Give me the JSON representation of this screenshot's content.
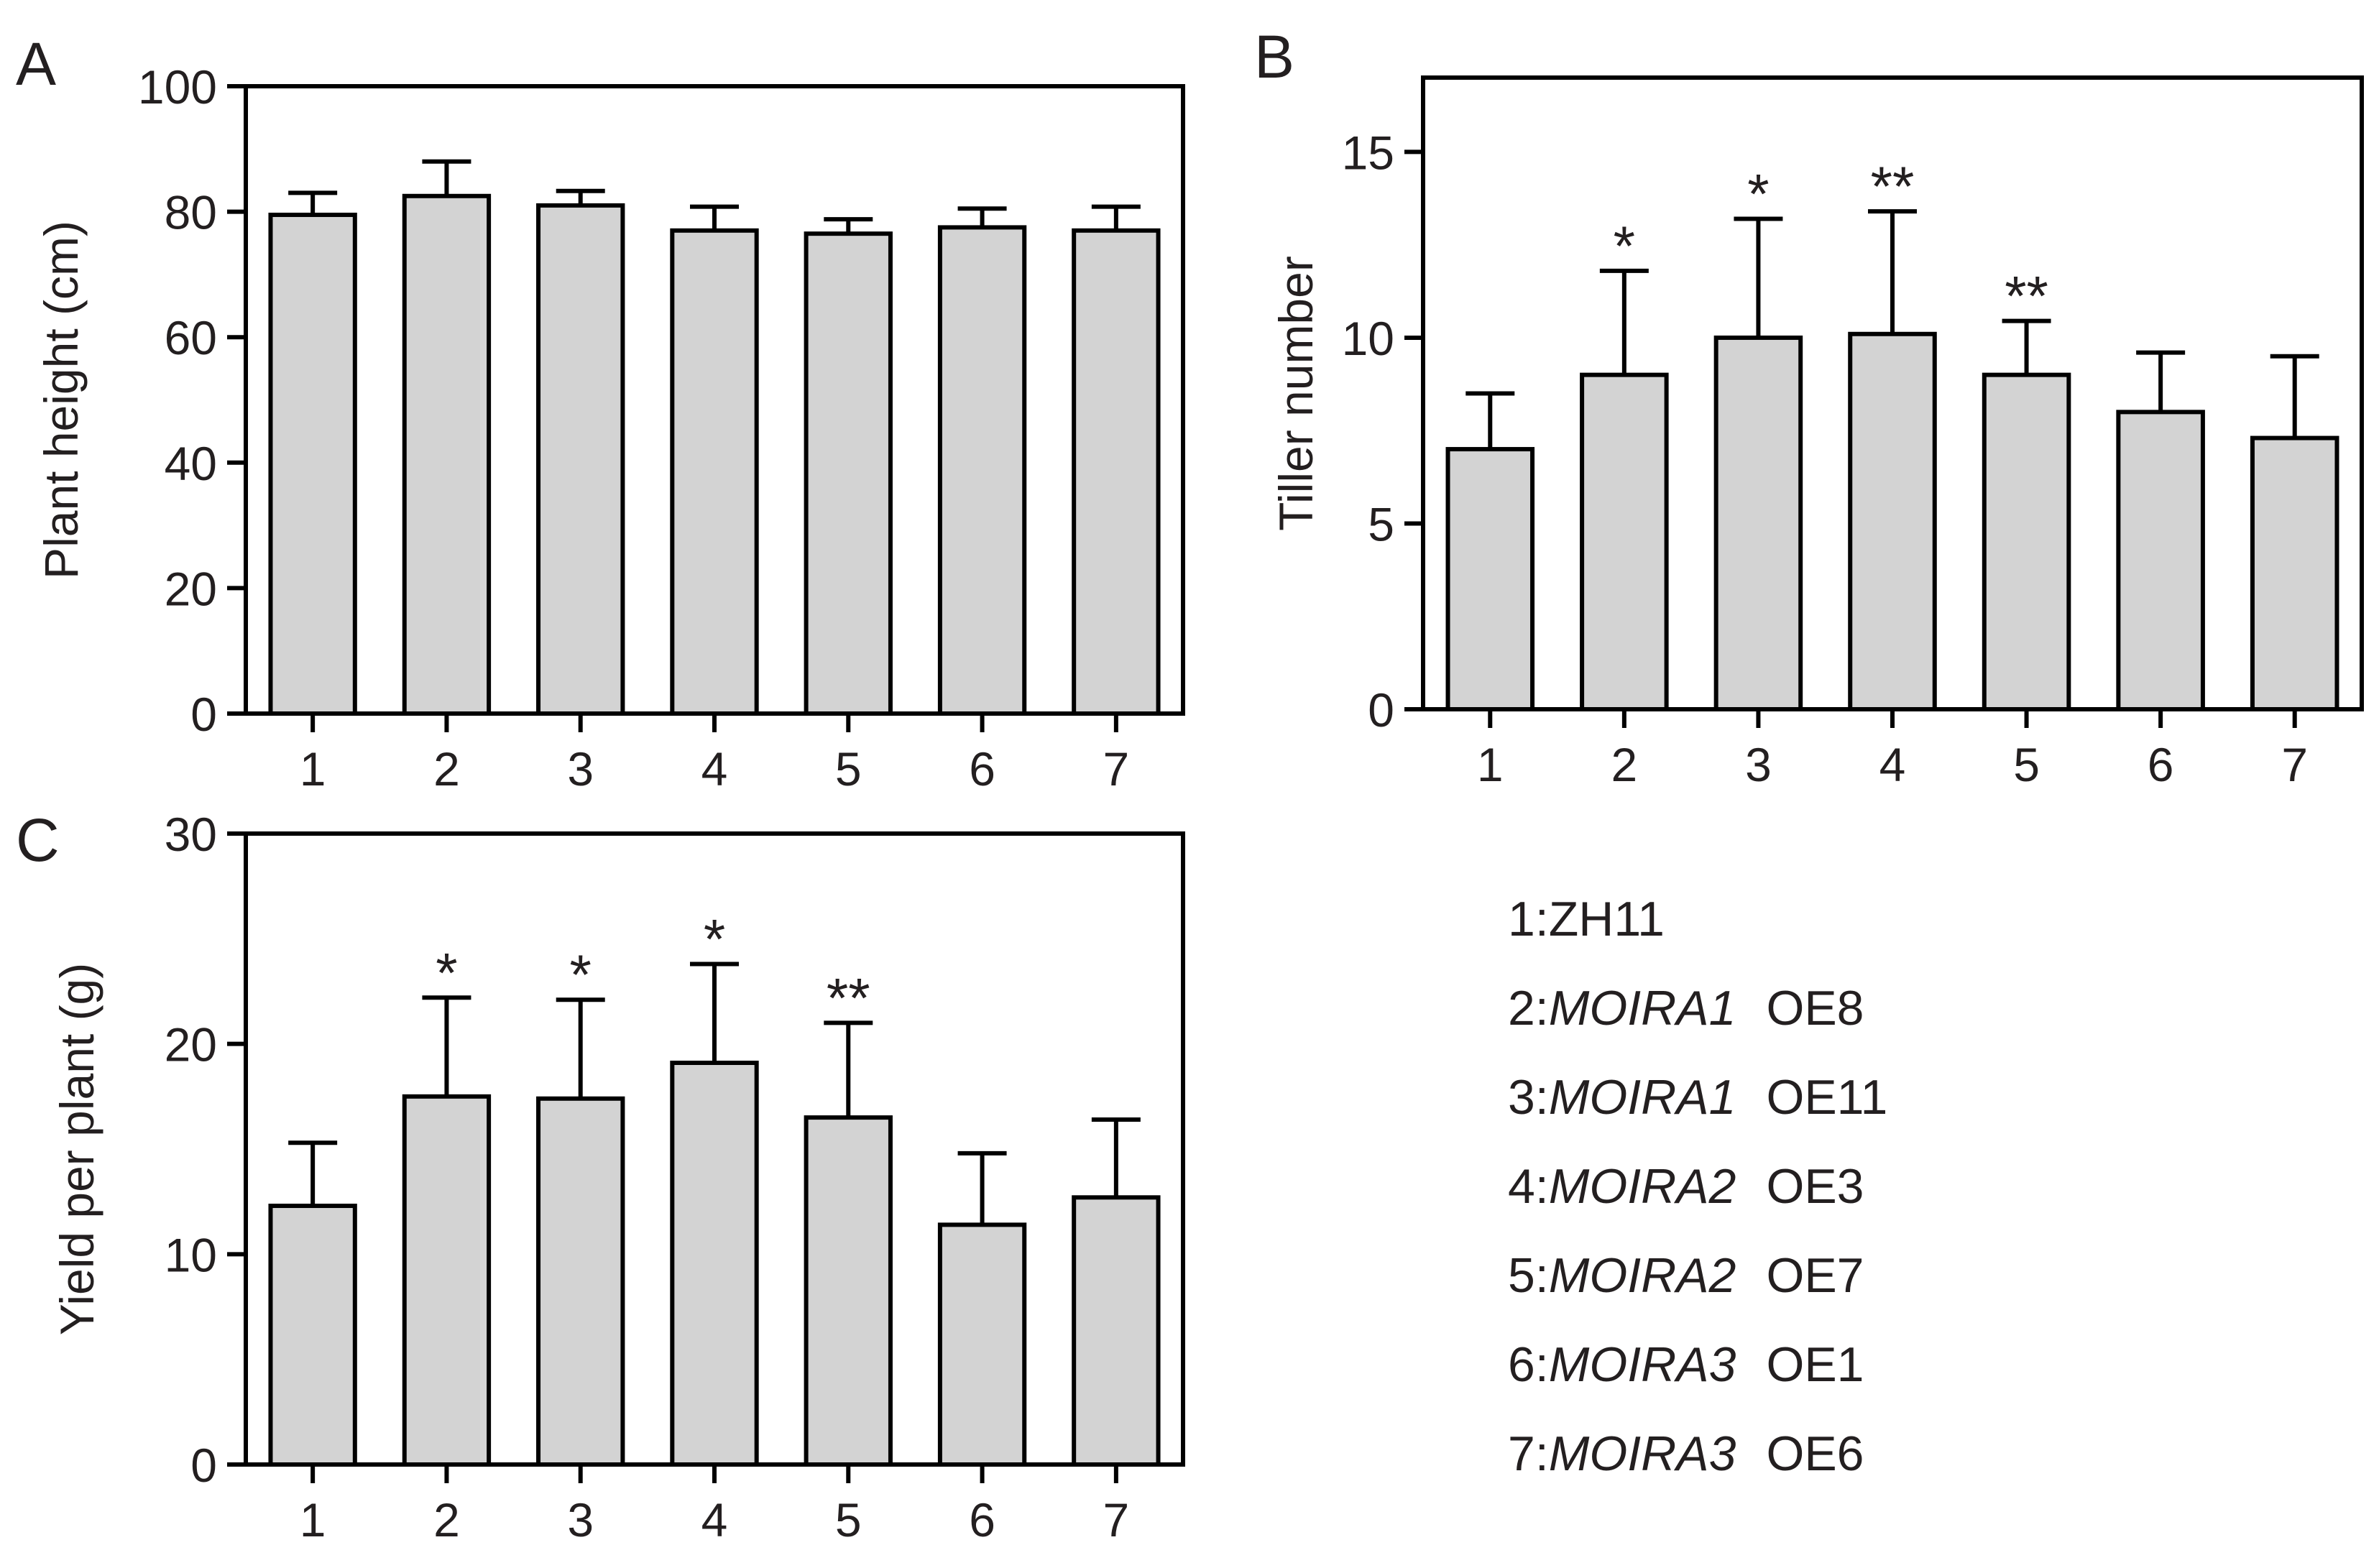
{
  "legend": {
    "items": [
      {
        "index": "1:",
        "gene": "",
        "line": "ZH11"
      },
      {
        "index": "2:",
        "gene": "MOIRA1",
        "line": "OE8"
      },
      {
        "index": "3:",
        "gene": "MOIRA1",
        "line": "OE11"
      },
      {
        "index": "4:",
        "gene": "MOIRA2",
        "line": "OE3"
      },
      {
        "index": "5:",
        "gene": "MOIRA2",
        "line": "OE7"
      },
      {
        "index": "6:",
        "gene": "MOIRA3",
        "line": "OE1"
      },
      {
        "index": "7:",
        "gene": "MOIRA3",
        "line": "OE6"
      }
    ]
  },
  "style": {
    "bar_fill": "#d3d3d3",
    "stroke": "#000000",
    "text": "#231f20"
  },
  "chart_data": [
    {
      "panel": "A",
      "type": "bar",
      "categories": [
        "1",
        "2",
        "3",
        "4",
        "5",
        "6",
        "7"
      ],
      "values": [
        79.5,
        82.5,
        81.0,
        77.0,
        76.5,
        77.5,
        77.0
      ],
      "errors": [
        3.5,
        5.5,
        2.3,
        3.8,
        2.3,
        3.0,
        3.8
      ],
      "significance": [
        "",
        "",
        "",
        "",
        "",
        "",
        ""
      ],
      "xlabel": "",
      "ylabel": "Plant height (cm)",
      "ylim": [
        0,
        100
      ],
      "yticks": [
        0,
        20,
        40,
        60,
        80,
        100
      ],
      "grid": false
    },
    {
      "panel": "B",
      "type": "bar",
      "categories": [
        "1",
        "2",
        "3",
        "4",
        "5",
        "6",
        "7"
      ],
      "values": [
        7.0,
        9.0,
        10.0,
        10.1,
        9.0,
        8.0,
        7.3
      ],
      "errors": [
        1.5,
        2.8,
        3.2,
        3.3,
        1.45,
        1.6,
        2.2
      ],
      "significance": [
        "",
        "*",
        "*",
        "**",
        "**",
        "",
        ""
      ],
      "xlabel": "",
      "ylabel": "Tiller number",
      "ylim": [
        0,
        17
      ],
      "yticks": [
        0,
        5,
        10,
        15
      ],
      "grid": false
    },
    {
      "panel": "C",
      "type": "bar",
      "categories": [
        "1",
        "2",
        "3",
        "4",
        "5",
        "6",
        "7"
      ],
      "values": [
        12.3,
        17.5,
        17.4,
        19.1,
        16.5,
        11.4,
        12.7
      ],
      "errors": [
        3.0,
        4.7,
        4.7,
        4.7,
        4.5,
        3.4,
        3.7
      ],
      "significance": [
        "",
        "*",
        "*",
        "*",
        "**",
        "",
        ""
      ],
      "xlabel": "",
      "ylabel": "Yield per plant (g)",
      "ylim": [
        0,
        30
      ],
      "yticks": [
        0,
        10,
        20,
        30
      ],
      "grid": false
    }
  ]
}
